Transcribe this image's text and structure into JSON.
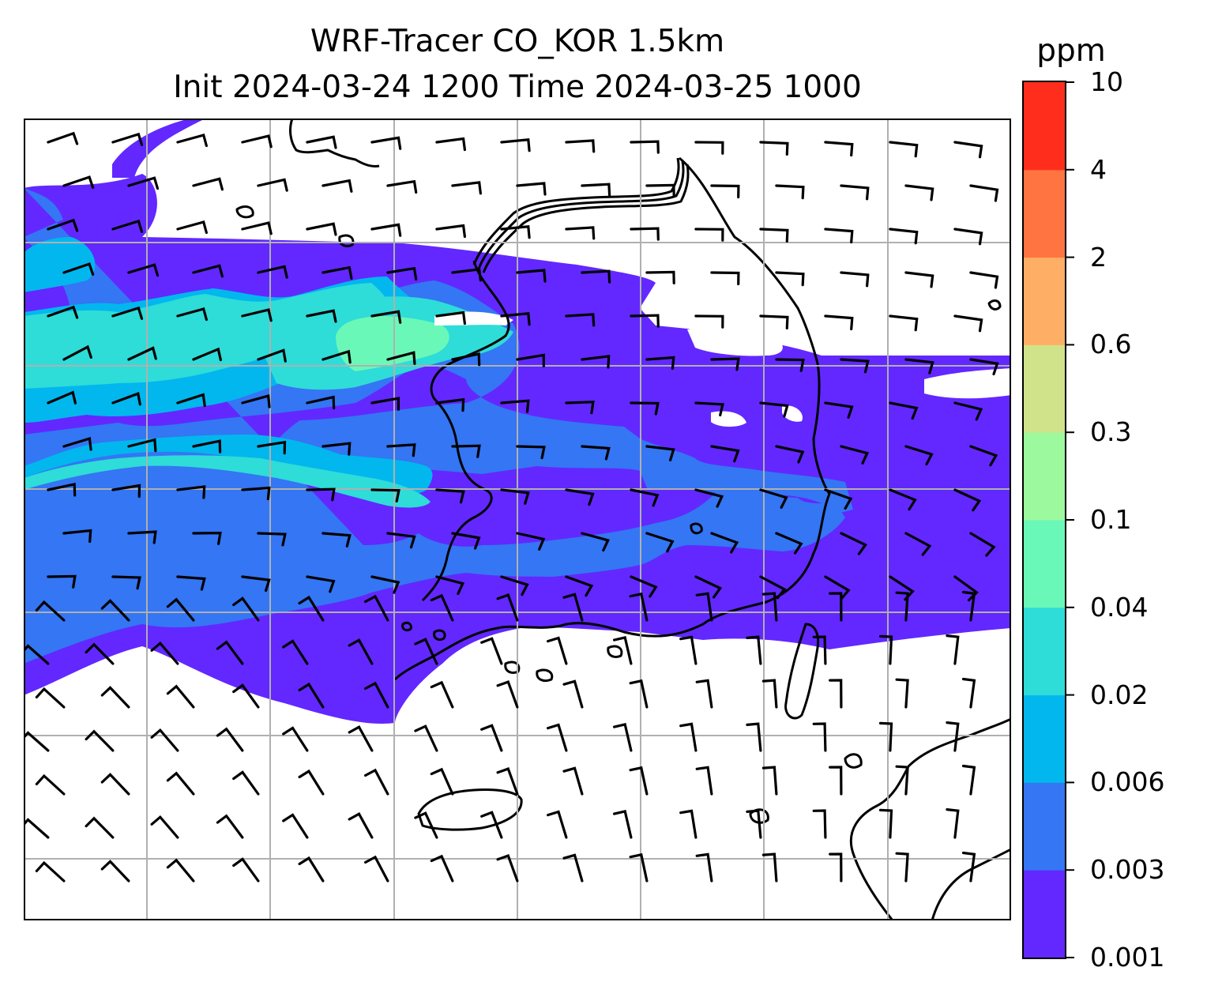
{
  "header": {
    "title_line1": "WRF-Tracer CO_KOR 1.5km",
    "title_line2": "Init 2024-03-24 1200 Time 2024-03-25 1000"
  },
  "colorbar": {
    "unit": "ppm",
    "levels": [
      "0.001",
      "0.003",
      "0.006",
      "0.02",
      "0.04",
      "0.1",
      "0.3",
      "0.6",
      "2",
      "4",
      "10"
    ],
    "colors": [
      "#6228ff",
      "#3476f3",
      "#02b7ee",
      "#2edcd8",
      "#6af8b8",
      "#9cf99e",
      "#d1e38a",
      "#ffaf65",
      "#ff7440",
      "#ff2e1c"
    ]
  },
  "map": {
    "gridlines": true,
    "overlay": "wind barbs",
    "coastline_color": "#000000",
    "grid_color": "#b0b0b0"
  }
}
